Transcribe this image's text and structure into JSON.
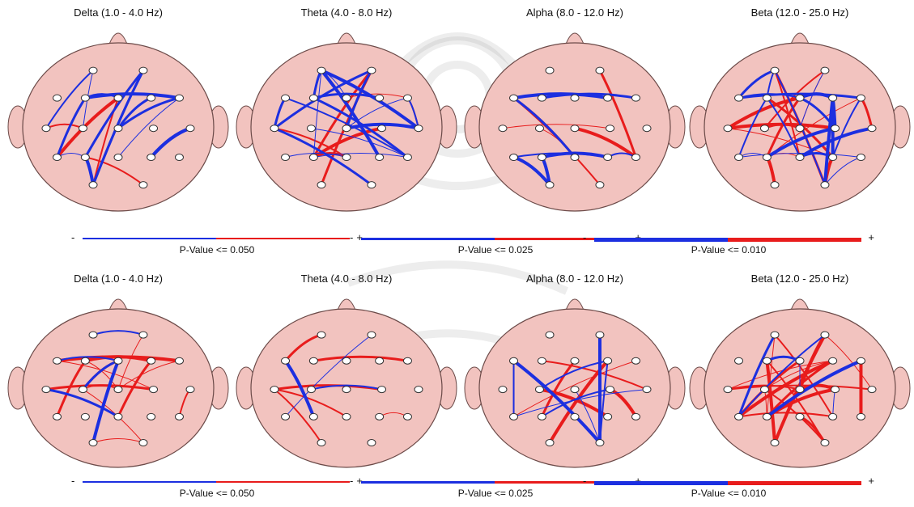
{
  "panels": [
    {
      "title": "Delta (1.0 - 4.0 Hz)",
      "n_pos": 4,
      "n_neg": 15
    },
    {
      "title": "Theta (4.0 - 8.0 Hz)",
      "n_pos": 10,
      "n_neg": 18
    },
    {
      "title": "Alpha (8.0 - 12.0 Hz)",
      "n_pos": 6,
      "n_neg": 8
    },
    {
      "title": "Beta (12.0 - 25.0 Hz)",
      "n_pos": 16,
      "n_neg": 22
    },
    {
      "title": "Delta (1.0 - 4.0 Hz)",
      "n_pos": 14,
      "n_neg": 5
    },
    {
      "title": "Theta (4.0 - 8.0 Hz)",
      "n_pos": 6,
      "n_neg": 3
    },
    {
      "title": "Alpha (8.0 - 12.0 Hz)",
      "n_pos": 6,
      "n_neg": 9
    },
    {
      "title": "Beta (12.0 - 25.0 Hz)",
      "n_pos": 24,
      "n_neg": 6
    }
  ],
  "legends": [
    {
      "minus": "-",
      "plus": "+",
      "label": "P-Value <= 0.050",
      "thickness": 2
    },
    {
      "minus": "-",
      "plus": "+",
      "label": "P-Value <= 0.025",
      "thickness": 3
    },
    {
      "minus": "-",
      "plus": "+",
      "label": "P-Value <= 0.010",
      "thickness": 5
    },
    {
      "minus": "-",
      "plus": "+",
      "label": "P-Value <= 0.050",
      "thickness": 2
    },
    {
      "minus": "-",
      "plus": "+",
      "label": "P-Value <= 0.025",
      "thickness": 3
    },
    {
      "minus": "-",
      "plus": "+",
      "label": "P-Value <= 0.010",
      "thickness": 5
    }
  ],
  "colors": {
    "head_fill": "#f2c3bf",
    "head_stroke": "#6b4a48",
    "positive": "#e81c1c",
    "negative": "#1c2fe0",
    "electrode_fill": "#ffffff",
    "electrode_stroke": "#333333"
  }
}
